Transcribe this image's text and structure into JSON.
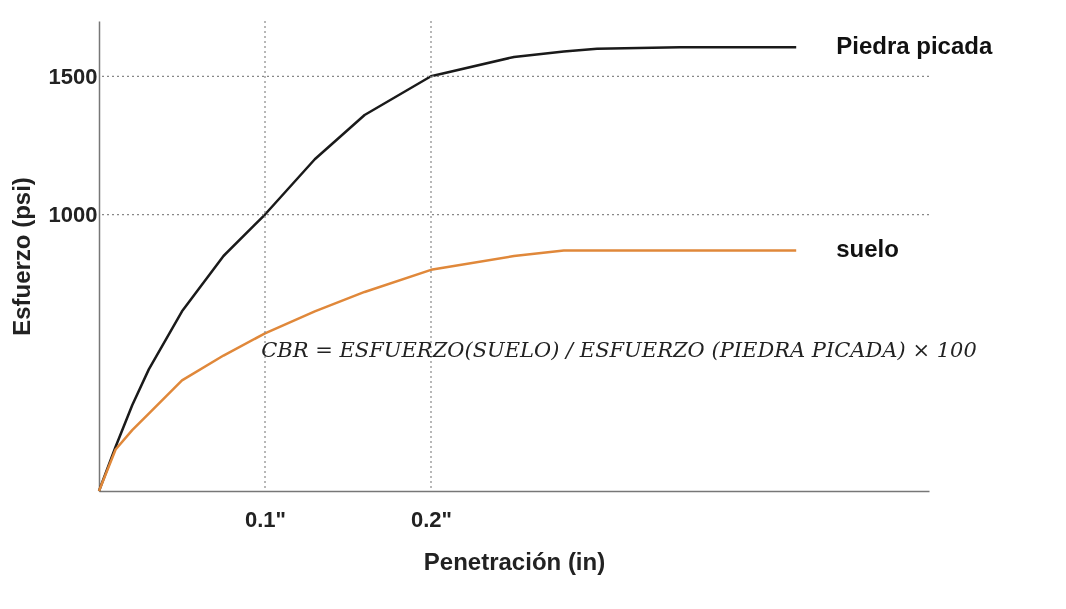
{
  "chart_data": {
    "type": "line",
    "xlabel": "Penetración (in)",
    "ylabel": "Esfuerzo (psi)",
    "x": [
      0,
      0.01,
      0.02,
      0.03,
      0.05,
      0.075,
      0.1,
      0.13,
      0.16,
      0.2,
      0.25,
      0.28,
      0.3,
      0.35,
      0.42
    ],
    "series": [
      {
        "name": "Piedra picada",
        "color": "#1a1a1a",
        "values": [
          0,
          160,
          310,
          440,
          650,
          850,
          1000,
          1200,
          1360,
          1500,
          1570,
          1590,
          1600,
          1605,
          1605
        ]
      },
      {
        "name": "suelo",
        "color": "#e0883a",
        "values": [
          0,
          150,
          220,
          280,
          400,
          490,
          570,
          650,
          720,
          800,
          850,
          870,
          870,
          870,
          870
        ]
      }
    ],
    "xlim": [
      0,
      0.5
    ],
    "ylim": [
      0,
      1700
    ],
    "xticks": [
      {
        "value": 0.1,
        "label": "0.1\""
      },
      {
        "value": 0.2,
        "label": "0.2\""
      }
    ],
    "yticks": [
      1000,
      1500
    ],
    "ref_lines": [
      {
        "axis": "y",
        "value": 1000,
        "color": "#888888",
        "line_style": "dotted"
      },
      {
        "axis": "y",
        "value": 1500,
        "color": "#888888",
        "line_style": "dotted"
      },
      {
        "axis": "x",
        "value": 0.1,
        "color": "#888888",
        "line_style": "dotted"
      },
      {
        "axis": "x",
        "value": 0.2,
        "color": "#888888",
        "line_style": "dotted"
      }
    ],
    "annotations": [
      "CBR = ESFUERZO(SUELO) / ESFUERZO (PIEDRA PICADA) × 100"
    ],
    "grid": false,
    "legend": false,
    "marker": "none",
    "line_style": "solid"
  }
}
